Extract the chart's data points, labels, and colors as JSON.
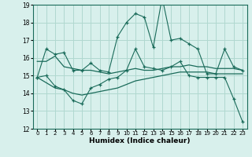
{
  "xlabel": "Humidex (Indice chaleur)",
  "x_values": [
    0,
    1,
    2,
    3,
    4,
    5,
    6,
    7,
    8,
    9,
    10,
    11,
    12,
    13,
    14,
    15,
    16,
    17,
    18,
    19,
    20,
    21,
    22,
    23
  ],
  "series1": [
    14.9,
    16.5,
    16.2,
    16.3,
    15.3,
    15.3,
    15.7,
    15.3,
    15.2,
    17.2,
    18.0,
    18.5,
    18.3,
    16.6,
    19.4,
    17.0,
    17.1,
    16.8,
    16.5,
    15.1,
    15.1,
    16.5,
    15.5,
    15.3
  ],
  "series2": [
    14.9,
    15.0,
    14.4,
    14.2,
    13.6,
    13.4,
    14.3,
    14.5,
    14.8,
    14.9,
    15.3,
    16.5,
    15.5,
    15.4,
    15.3,
    15.5,
    15.8,
    15.0,
    14.9,
    14.9,
    14.9,
    14.9,
    13.7,
    12.4
  ],
  "trend1": [
    15.8,
    15.8,
    16.1,
    15.5,
    15.4,
    15.3,
    15.3,
    15.2,
    15.1,
    15.2,
    15.3,
    15.4,
    15.3,
    15.3,
    15.4,
    15.5,
    15.5,
    15.6,
    15.5,
    15.5,
    15.4,
    15.4,
    15.4,
    15.3
  ],
  "trend2": [
    14.9,
    14.6,
    14.3,
    14.2,
    14.0,
    13.9,
    14.0,
    14.1,
    14.2,
    14.3,
    14.5,
    14.7,
    14.8,
    14.9,
    15.0,
    15.1,
    15.2,
    15.2,
    15.2,
    15.2,
    15.1,
    15.1,
    15.1,
    15.1
  ],
  "line_color": "#1a6b5a",
  "bg_color": "#d8f0ec",
  "grid_color": "#b0d8d0",
  "ylim": [
    12,
    19
  ],
  "yticks": [
    12,
    13,
    14,
    15,
    16,
    17,
    18,
    19
  ]
}
